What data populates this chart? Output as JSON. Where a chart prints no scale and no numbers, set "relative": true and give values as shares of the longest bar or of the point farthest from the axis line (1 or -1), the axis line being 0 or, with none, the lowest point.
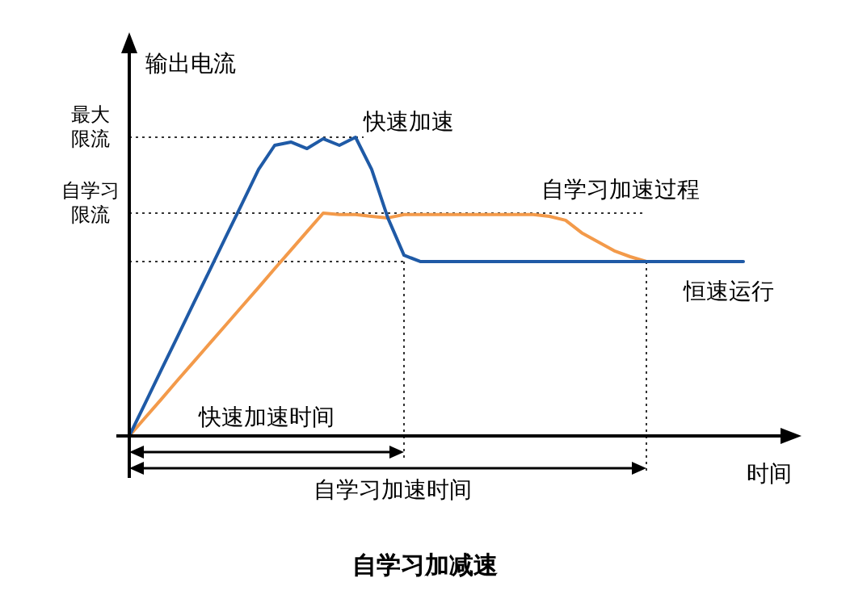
{
  "chart_data": {
    "type": "line",
    "title": "自学习加减速",
    "xlabel": "时间",
    "ylabel": "输出电流",
    "relative": true,
    "legend": false,
    "marker": "none",
    "line_style": "solid",
    "grid": false,
    "categories": [
      null,
      null,
      null,
      null,
      null,
      null,
      null,
      null,
      null,
      null,
      null,
      null,
      null,
      null,
      null,
      null,
      null,
      null,
      null,
      null,
      null,
      null,
      null,
      null,
      null,
      null,
      null,
      null,
      null,
      null,
      null,
      null,
      null,
      null,
      null,
      null,
      null,
      null,
      null
    ],
    "series": [
      {
        "name": "快速加速",
        "color": "#1f5aa6",
        "values": [
          0,
          0.111,
          0.223,
          0.334,
          0.446,
          0.557,
          0.669,
          0.78,
          0.892,
          0.973,
          0.984,
          0.962,
          0.995,
          0.973,
          1,
          0.892,
          0.73,
          0.605,
          0.584,
          0.584,
          0.584,
          0.584,
          0.584,
          0.584,
          0.584,
          0.584,
          0.584,
          0.584,
          0.584,
          0.584,
          0.584,
          0.584,
          0.584,
          0.584,
          0.584,
          0.584,
          0.584,
          0.584,
          0.584
        ]
      },
      {
        "name": "自学习加速过程",
        "color": "#f39a4a",
        "values": [
          0,
          0.062,
          0.124,
          0.187,
          0.249,
          0.311,
          0.373,
          0.435,
          0.497,
          0.56,
          0.622,
          0.684,
          0.746,
          0.741,
          0.741,
          0.735,
          0.73,
          0.741,
          0.741,
          0.741,
          0.741,
          0.741,
          0.741,
          0.741,
          0.741,
          0.741,
          0.735,
          0.722,
          0.68,
          0.65,
          0.62,
          0.6,
          0.584,
          null,
          null,
          null,
          null,
          null,
          null
        ]
      }
    ],
    "ref_lines": [
      {
        "axis": "y",
        "value": 1,
        "label": "最大限流",
        "line_style": "dotted"
      },
      {
        "axis": "y",
        "value": 0.746,
        "label": "自学习限流",
        "line_style": "dotted"
      },
      {
        "axis": "y",
        "value": 0.584,
        "label": null,
        "line_style": "dotted"
      }
    ],
    "annotations": [
      "恒速运行",
      "快速加速时间",
      "自学习加速时间"
    ]
  }
}
